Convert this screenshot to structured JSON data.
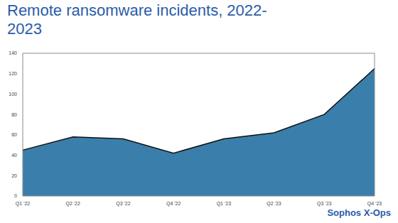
{
  "chart_data": {
    "type": "area",
    "title": "Remote ransomware incidents, 2022-2023",
    "annotations": [
      "Sophos X-Ops"
    ],
    "categories": [
      "Q1 '22",
      "Q2 '22",
      "Q3 '22",
      "Q4 '22",
      "Q1 '23",
      "Q2 '23",
      "Q3 '23",
      "Q4 '23"
    ],
    "values": [
      45,
      58,
      56,
      42,
      56,
      62,
      80,
      125
    ],
    "color": "#3a7fab",
    "ylim": [
      0,
      140
    ],
    "yticks": [
      0,
      20,
      40,
      60,
      80,
      100,
      120,
      140
    ],
    "grid": false
  }
}
